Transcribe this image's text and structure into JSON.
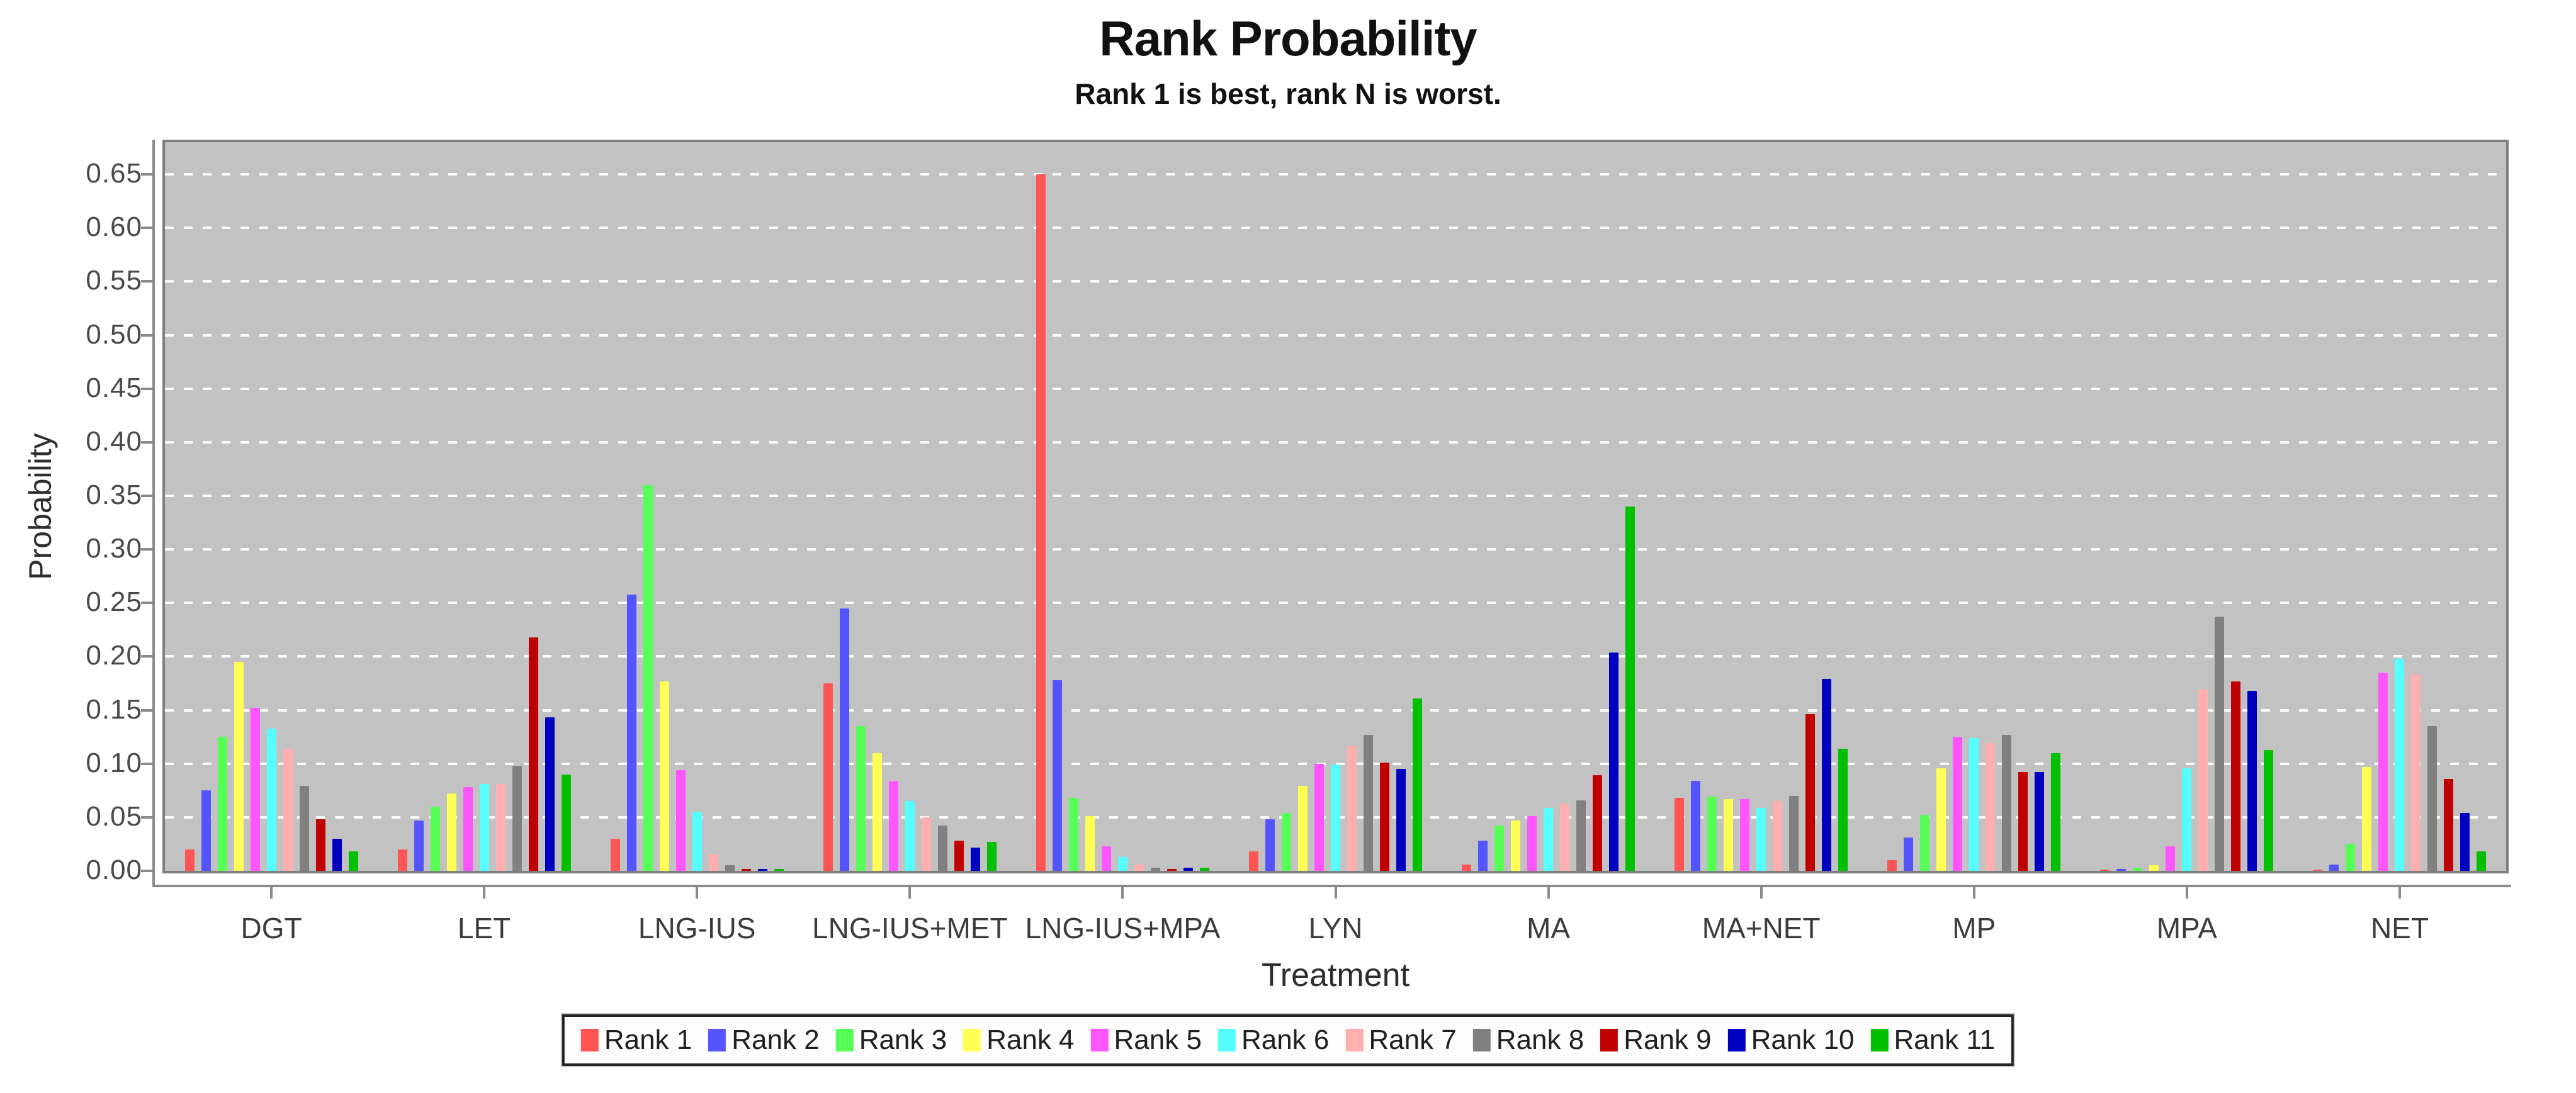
{
  "chart_data": {
    "type": "bar",
    "title": "Rank Probability",
    "subtitle": "Rank 1 is best, rank N is worst.",
    "xlabel": "Treatment",
    "ylabel": "Probability",
    "ylim": [
      0,
      0.68
    ],
    "ytick_step": 0.05,
    "yticks": [
      "0.00",
      "0.05",
      "0.10",
      "0.15",
      "0.20",
      "0.25",
      "0.30",
      "0.35",
      "0.40",
      "0.45",
      "0.50",
      "0.55",
      "0.60",
      "0.65"
    ],
    "grid": "horizontal white dashed lines, gray plot background",
    "plot_background": "#c2c2c2",
    "legend_position": "bottom",
    "categories": [
      "DGT",
      "LET",
      "LNG-IUS",
      "LNG-IUS+MET",
      "LNG-IUS+MPA",
      "LYN",
      "MA",
      "MA+NET",
      "MP",
      "MPA",
      "NET"
    ],
    "series": [
      {
        "name": "Rank 1",
        "color": "#FF5555",
        "values": [
          0.02,
          0.02,
          0.03,
          0.175,
          0.65,
          0.018,
          0.006,
          0.068,
          0.01,
          0.001,
          0.001
        ]
      },
      {
        "name": "Rank 2",
        "color": "#5555FF",
        "values": [
          0.075,
          0.047,
          0.258,
          0.245,
          0.178,
          0.048,
          0.028,
          0.084,
          0.031,
          0.002,
          0.006
        ]
      },
      {
        "name": "Rank 3",
        "color": "#55FF55",
        "values": [
          0.125,
          0.06,
          0.36,
          0.135,
          0.068,
          0.054,
          0.042,
          0.069,
          0.052,
          0.003,
          0.025
        ]
      },
      {
        "name": "Rank 4",
        "color": "#FFFF55",
        "values": [
          0.195,
          0.072,
          0.177,
          0.11,
          0.051,
          0.079,
          0.047,
          0.067,
          0.096,
          0.005,
          0.097
        ]
      },
      {
        "name": "Rank 5",
        "color": "#FF55FF",
        "values": [
          0.152,
          0.078,
          0.094,
          0.084,
          0.023,
          0.1,
          0.051,
          0.067,
          0.125,
          0.023,
          0.185
        ]
      },
      {
        "name": "Rank 6",
        "color": "#55FFFF",
        "values": [
          0.133,
          0.081,
          0.055,
          0.065,
          0.013,
          0.099,
          0.059,
          0.059,
          0.124,
          0.096,
          0.198
        ]
      },
      {
        "name": "Rank 7",
        "color": "#FFAFAF",
        "values": [
          0.114,
          0.081,
          0.016,
          0.05,
          0.006,
          0.117,
          0.063,
          0.065,
          0.119,
          0.169,
          0.183
        ]
      },
      {
        "name": "Rank 8",
        "color": "#808080",
        "values": [
          0.079,
          0.098,
          0.005,
          0.042,
          0.003,
          0.127,
          0.066,
          0.07,
          0.127,
          0.237,
          0.135
        ]
      },
      {
        "name": "Rank 9",
        "color": "#C00000",
        "values": [
          0.048,
          0.218,
          0.002,
          0.028,
          0.002,
          0.101,
          0.089,
          0.146,
          0.092,
          0.177,
          0.086
        ]
      },
      {
        "name": "Rank 10",
        "color": "#0000C0",
        "values": [
          0.03,
          0.143,
          0.002,
          0.022,
          0.003,
          0.095,
          0.204,
          0.179,
          0.092,
          0.168,
          0.054
        ]
      },
      {
        "name": "Rank 11",
        "color": "#00C000",
        "values": [
          0.018,
          0.09,
          0.002,
          0.027,
          0.003,
          0.161,
          0.34,
          0.114,
          0.11,
          0.113,
          0.018
        ]
      }
    ]
  }
}
